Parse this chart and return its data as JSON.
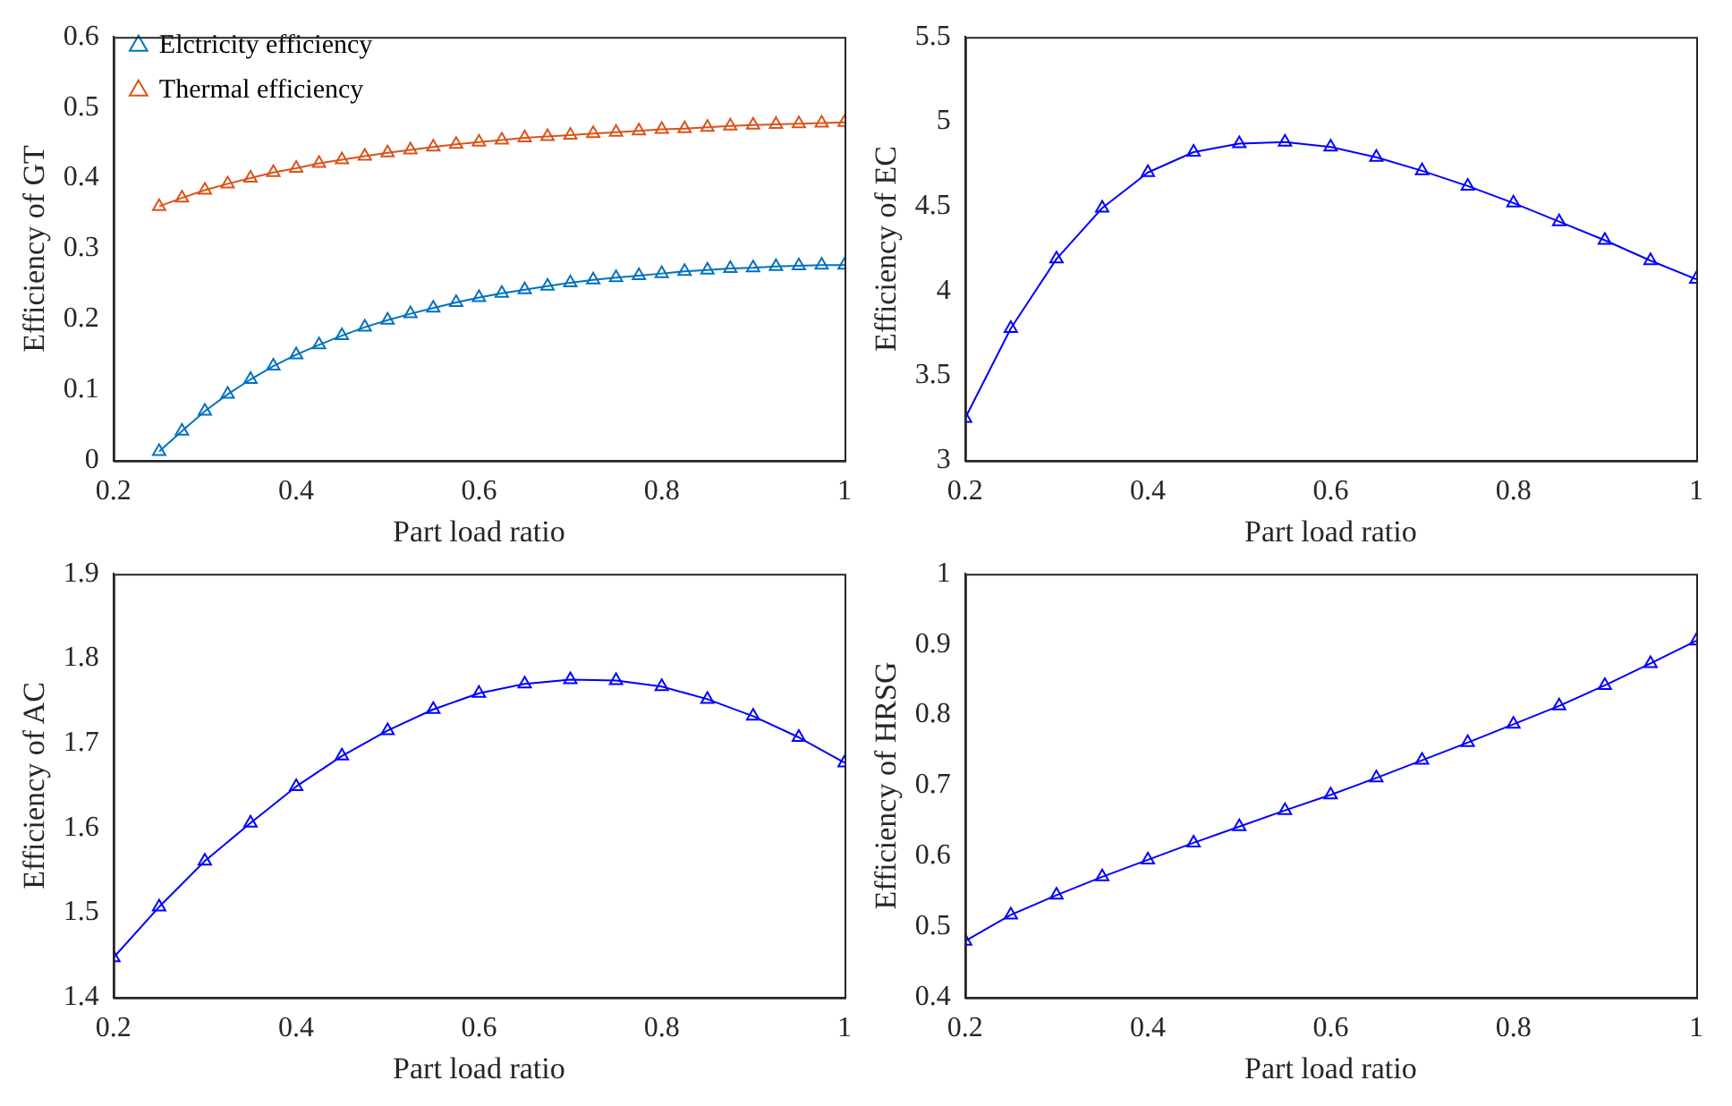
{
  "chart_data": [
    {
      "type": "line",
      "xlabel": "Part load ratio",
      "ylabel": "Efficiency of GT",
      "x": [
        0.25,
        0.275,
        0.3,
        0.325,
        0.35,
        0.375,
        0.4,
        0.425,
        0.45,
        0.475,
        0.5,
        0.525,
        0.55,
        0.575,
        0.6,
        0.625,
        0.65,
        0.675,
        0.7,
        0.725,
        0.75,
        0.775,
        0.8,
        0.825,
        0.85,
        0.875,
        0.9,
        0.925,
        0.95,
        0.975,
        1
      ],
      "series": [
        {
          "name": "Elctricity efficiency",
          "color": "#0072bd",
          "values": [
            0.013,
            0.042,
            0.07,
            0.094,
            0.115,
            0.134,
            0.15,
            0.164,
            0.177,
            0.189,
            0.199,
            0.208,
            0.216,
            0.224,
            0.231,
            0.237,
            0.242,
            0.247,
            0.252,
            0.256,
            0.259,
            0.262,
            0.265,
            0.268,
            0.27,
            0.272,
            0.273,
            0.275,
            0.276,
            0.277,
            0.277
          ]
        },
        {
          "name": "Thermal efficiency",
          "color": "#d95319",
          "values": [
            0.36,
            0.372,
            0.383,
            0.392,
            0.4,
            0.408,
            0.414,
            0.421,
            0.426,
            0.431,
            0.436,
            0.44,
            0.444,
            0.448,
            0.451,
            0.454,
            0.457,
            0.459,
            0.461,
            0.463,
            0.465,
            0.467,
            0.469,
            0.47,
            0.472,
            0.474,
            0.475,
            0.476,
            0.477,
            0.478,
            0.479
          ]
        }
      ],
      "xlim": [
        0.2,
        1
      ],
      "xticks": [
        0.2,
        0.4,
        0.6,
        0.8,
        1
      ],
      "ylim": [
        0,
        0.6
      ],
      "yticks": [
        0,
        0.1,
        0.2,
        0.3,
        0.4,
        0.5,
        0.6
      ],
      "marker": "triangle",
      "legend": "top left"
    },
    {
      "type": "line",
      "xlabel": "Part load ratio",
      "ylabel": "Efficiency of EC",
      "x": [
        0.2,
        0.25,
        0.3,
        0.35,
        0.4,
        0.45,
        0.5,
        0.55,
        0.6,
        0.65,
        0.7,
        0.75,
        0.8,
        0.85,
        0.9,
        0.95,
        1
      ],
      "series": [
        {
          "color": "#0000ff",
          "values": [
            3.25,
            3.78,
            4.19,
            4.49,
            4.7,
            4.82,
            4.87,
            4.88,
            4.85,
            4.79,
            4.71,
            4.62,
            4.52,
            4.41,
            4.3,
            4.18,
            4.07
          ]
        }
      ],
      "xlim": [
        0.2,
        1
      ],
      "xticks": [
        0.2,
        0.4,
        0.6,
        0.8,
        1
      ],
      "ylim": [
        3,
        5.5
      ],
      "yticks": [
        3,
        3.5,
        4,
        4.5,
        5,
        5.5
      ],
      "marker": "triangle"
    },
    {
      "type": "line",
      "xlabel": "Part load ratio",
      "ylabel": "Efficiency of AC",
      "x": [
        0.2,
        0.25,
        0.3,
        0.35,
        0.4,
        0.45,
        0.5,
        0.55,
        0.6,
        0.65,
        0.7,
        0.75,
        0.8,
        0.85,
        0.9,
        0.95,
        1
      ],
      "series": [
        {
          "color": "#0000ff",
          "values": [
            1.447,
            1.507,
            1.561,
            1.606,
            1.649,
            1.685,
            1.715,
            1.74,
            1.759,
            1.77,
            1.775,
            1.774,
            1.767,
            1.752,
            1.732,
            1.707,
            1.677
          ]
        }
      ],
      "xlim": [
        0.2,
        1
      ],
      "xticks": [
        0.2,
        0.4,
        0.6,
        0.8,
        1
      ],
      "ylim": [
        1.4,
        1.9
      ],
      "yticks": [
        1.4,
        1.5,
        1.6,
        1.7,
        1.8,
        1.9
      ],
      "marker": "triangle"
    },
    {
      "type": "line",
      "xlabel": "Part load ratio",
      "ylabel": "Efficiency of HRSG",
      "x": [
        0.2,
        0.25,
        0.3,
        0.35,
        0.4,
        0.45,
        0.5,
        0.55,
        0.6,
        0.65,
        0.7,
        0.75,
        0.8,
        0.85,
        0.9,
        0.95,
        1
      ],
      "series": [
        {
          "color": "#0000ff",
          "values": [
            0.48,
            0.517,
            0.545,
            0.571,
            0.595,
            0.619,
            0.642,
            0.665,
            0.687,
            0.711,
            0.736,
            0.761,
            0.787,
            0.813,
            0.842,
            0.873,
            0.905
          ]
        }
      ],
      "xlim": [
        0.2,
        1
      ],
      "xticks": [
        0.2,
        0.4,
        0.6,
        0.8,
        1
      ],
      "ylim": [
        0.4,
        1
      ],
      "yticks": [
        0.4,
        0.5,
        0.6,
        0.7,
        0.8,
        0.9,
        1
      ],
      "marker": "triangle"
    }
  ]
}
